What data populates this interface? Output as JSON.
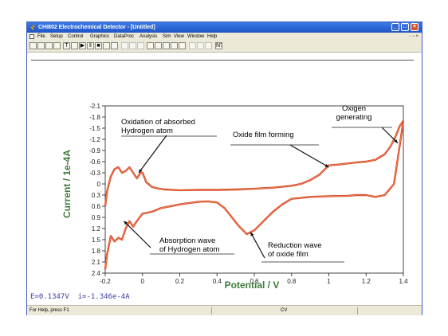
{
  "window": {
    "title": "CHI802 Electrochemical Detector - [Untitled]",
    "controls": {
      "minimize": "_",
      "maximize": "□",
      "close": "×"
    }
  },
  "menu": {
    "items": [
      "File",
      "Setup",
      "Control",
      "Graphics",
      "DataProc",
      "Analysis",
      "Sim",
      "View",
      "Window",
      "Help"
    ],
    "mdi_controls": "- ▫ ×"
  },
  "toolbar": {
    "buttons": [
      {
        "icon": "new-file-icon",
        "glyph": ""
      },
      {
        "icon": "open-folder-icon",
        "glyph": ""
      },
      {
        "icon": "save-icon",
        "glyph": ""
      },
      {
        "icon": "print-icon",
        "glyph": ""
      },
      {
        "icon": "technique-icon",
        "glyph": "T"
      },
      {
        "icon": "parameters-icon",
        "glyph": ""
      },
      {
        "icon": "run-icon",
        "glyph": "▶"
      },
      {
        "icon": "pause-icon",
        "glyph": "‖"
      },
      {
        "icon": "stop-icon",
        "glyph": "■"
      },
      {
        "icon": "reverse-icon",
        "glyph": ""
      },
      {
        "icon": "filter-icon",
        "glyph": ""
      },
      {
        "icon": "zoom-icon",
        "glyph": ""
      },
      {
        "icon": "zoom-out-icon",
        "glyph": ""
      },
      {
        "icon": "manual-results-icon",
        "glyph": ""
      },
      {
        "icon": "peak-icon",
        "glyph": ""
      },
      {
        "icon": "graph-icon",
        "glyph": ""
      },
      {
        "icon": "color-icon",
        "glyph": ""
      },
      {
        "icon": "font-icon",
        "glyph": ""
      },
      {
        "icon": "overlay-icon",
        "glyph": ""
      },
      {
        "icon": "smooth-icon",
        "glyph": ""
      },
      {
        "icon": "derivative-icon",
        "glyph": ""
      },
      {
        "icon": "integrate-icon",
        "glyph": ""
      },
      {
        "icon": "help-icon",
        "glyph": "N?"
      }
    ]
  },
  "readout": {
    "potential": "E=0.1347V",
    "current": "i=-1.346e-4A"
  },
  "status": {
    "help": "For Help, press F1",
    "mode": "CV"
  },
  "chart_data": {
    "type": "line",
    "xlabel": "Potential / V",
    "ylabel": "Current / 1e-4A",
    "xlim": [
      -0.2,
      1.4
    ],
    "ylim_top_to_bottom": [
      -2.1,
      2.4
    ],
    "y_axis_inverted": true,
    "x_ticks": [
      "-0.2",
      "0",
      "0.2",
      "0.4",
      "0.6",
      "0.8",
      "1",
      "1.2",
      "1.4"
    ],
    "y_ticks": [
      "-2.1",
      "-1.8",
      "-1.5",
      "-1.2",
      "-0.9",
      "-0.6",
      "-0.3",
      "0",
      "0.3",
      "0.6",
      "0.9",
      "1.2",
      "1.5",
      "1.8",
      "2.1",
      "2.4"
    ],
    "grid": false,
    "series_color": "#d9461f",
    "annotation_color": "#000000",
    "series": [
      {
        "segment": "anodic",
        "x": [
          -0.2,
          -0.19,
          -0.17,
          -0.15,
          -0.13,
          -0.11,
          -0.09,
          -0.07,
          -0.05,
          -0.03,
          -0.01,
          0.0,
          0.02,
          0.05,
          0.08,
          0.12,
          0.2,
          0.3,
          0.4,
          0.5,
          0.6,
          0.7,
          0.8,
          0.85,
          0.9,
          0.95,
          1.0,
          1.05,
          1.1,
          1.15,
          1.2,
          1.25,
          1.3,
          1.33,
          1.36,
          1.38,
          1.4
        ],
        "y": [
          0.6,
          0.2,
          -0.2,
          -0.4,
          -0.45,
          -0.3,
          -0.35,
          -0.45,
          -0.3,
          -0.15,
          -0.3,
          -0.3,
          -0.05,
          0.08,
          0.12,
          0.15,
          0.17,
          0.16,
          0.16,
          0.15,
          0.13,
          0.1,
          0.05,
          0.0,
          -0.1,
          -0.25,
          -0.5,
          -0.52,
          -0.55,
          -0.58,
          -0.6,
          -0.65,
          -0.8,
          -1.0,
          -1.3,
          -1.55,
          -1.7
        ]
      },
      {
        "segment": "cathodic",
        "x": [
          1.4,
          1.35,
          1.3,
          1.25,
          1.2,
          1.15,
          1.1,
          1.0,
          0.9,
          0.8,
          0.75,
          0.7,
          0.65,
          0.6,
          0.56,
          0.52,
          0.48,
          0.44,
          0.4,
          0.35,
          0.3,
          0.2,
          0.1,
          0.05,
          0.0,
          -0.03,
          -0.05,
          -0.07,
          -0.09,
          -0.11,
          -0.13,
          -0.15,
          -0.17,
          -0.19,
          -0.2
        ],
        "y": [
          -1.7,
          0.0,
          0.3,
          0.35,
          0.3,
          0.3,
          0.32,
          0.33,
          0.35,
          0.4,
          0.55,
          0.75,
          1.0,
          1.25,
          1.35,
          1.15,
          0.9,
          0.65,
          0.5,
          0.47,
          0.48,
          0.55,
          0.65,
          0.75,
          0.8,
          1.0,
          1.15,
          1.0,
          1.2,
          1.5,
          1.45,
          1.55,
          1.4,
          1.9,
          2.3
        ]
      }
    ],
    "annotations": [
      {
        "text": [
          "Oxidation of absorbed",
          "Hydrogen atom"
        ],
        "target": [
          -0.02,
          -0.3
        ]
      },
      {
        "text": [
          "Oxide film forming"
        ],
        "target": [
          1.0,
          -0.45
        ]
      },
      {
        "text": [
          "Oxigen",
          "generating"
        ],
        "target": [
          1.37,
          -1.1
        ]
      },
      {
        "text": [
          "Absorption wave",
          "of Hydrogen atom"
        ],
        "target": [
          -0.1,
          1.0
        ]
      },
      {
        "text": [
          "Reduction wave",
          "of oxide film"
        ],
        "target": [
          0.58,
          1.3
        ]
      }
    ]
  }
}
